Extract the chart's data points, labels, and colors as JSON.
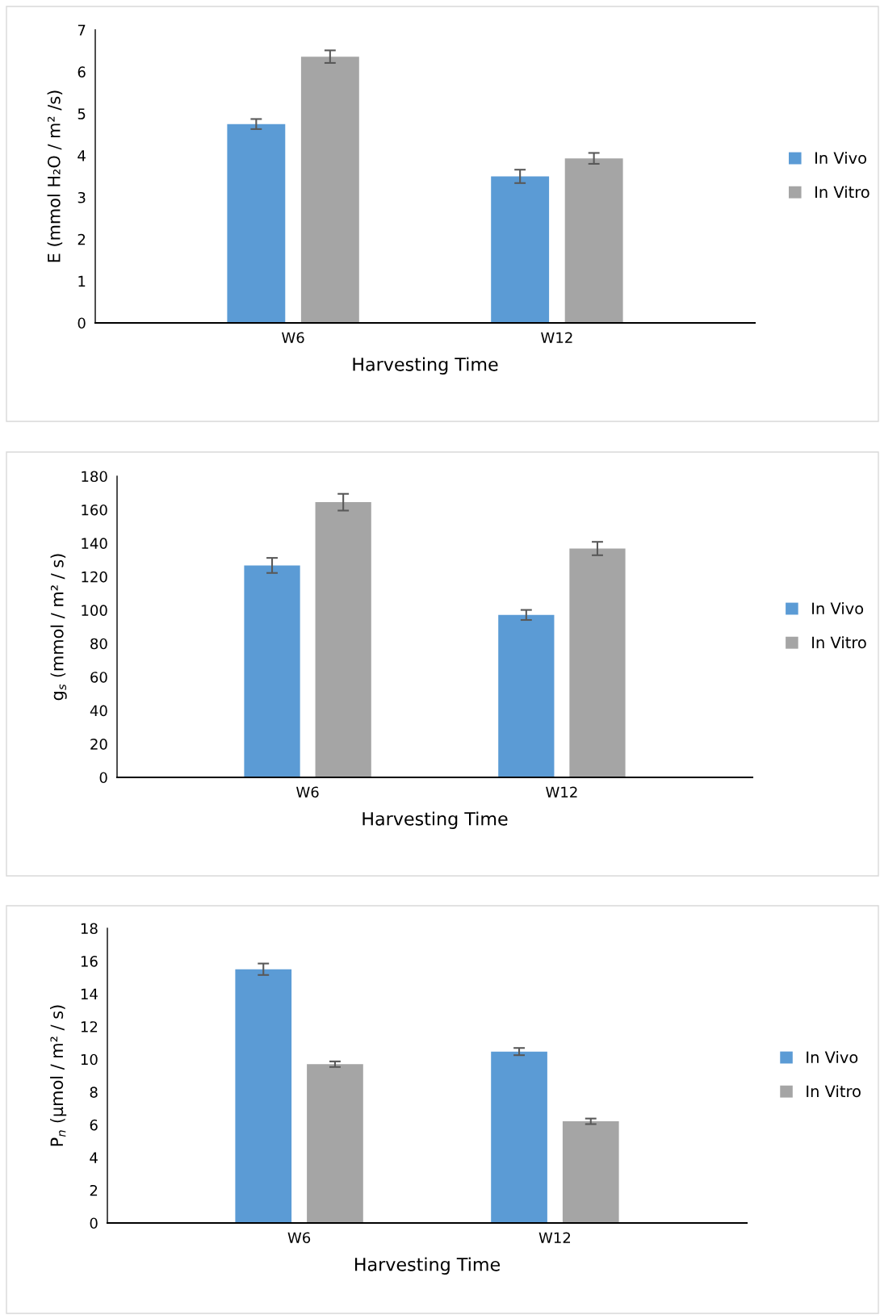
{
  "chart_data": [
    {
      "type": "bar",
      "categories": [
        "W6",
        "W12"
      ],
      "xlabel": "Harvesting Time",
      "ylabel": "E (mmol H₂O / m² /s)",
      "ylim": [
        0,
        7
      ],
      "yticks": [
        0,
        1,
        2,
        3,
        4,
        5,
        6,
        7
      ],
      "legend": "right",
      "grid": false,
      "series": [
        {
          "name": "In Vivo",
          "color": "#5b9bd5",
          "values": [
            4.75,
            3.5
          ],
          "errors": [
            0.12,
            0.16
          ]
        },
        {
          "name": "In Vitro",
          "color": "#a5a5a5",
          "values": [
            6.36,
            3.93
          ],
          "errors": [
            0.15,
            0.13
          ]
        }
      ]
    },
    {
      "type": "bar",
      "categories": [
        "W6",
        "W12"
      ],
      "xlabel": "Harvesting Time",
      "ylabel": "g$_{s}$ (mmol / m² / s)",
      "ylim": [
        0,
        180
      ],
      "yticks": [
        0,
        20,
        40,
        60,
        80,
        100,
        120,
        140,
        160,
        180
      ],
      "legend": "right",
      "grid": false,
      "series": [
        {
          "name": "In Vivo",
          "color": "#5b9bd5",
          "values": [
            126.7,
            97.1
          ],
          "errors": [
            4.5,
            3
          ]
        },
        {
          "name": "In Vitro",
          "color": "#a5a5a5",
          "values": [
            164.5,
            136.8
          ],
          "errors": [
            5,
            4
          ]
        }
      ]
    },
    {
      "type": "bar",
      "categories": [
        "W6",
        "W12"
      ],
      "xlabel": "Harvesting Time",
      "ylabel": "P$_{n}$ (µmol / m² / s)",
      "ylim": [
        0,
        18
      ],
      "yticks": [
        0,
        2,
        4,
        6,
        8,
        10,
        12,
        14,
        16,
        18
      ],
      "legend": "right",
      "grid": false,
      "series": [
        {
          "name": "In Vivo",
          "color": "#5b9bd5",
          "values": [
            15.5,
            10.47
          ],
          "errors": [
            0.35,
            0.22
          ]
        },
        {
          "name": "In Vitro",
          "color": "#a5a5a5",
          "values": [
            9.7,
            6.21
          ],
          "errors": [
            0.17,
            0.17
          ]
        }
      ]
    }
  ]
}
